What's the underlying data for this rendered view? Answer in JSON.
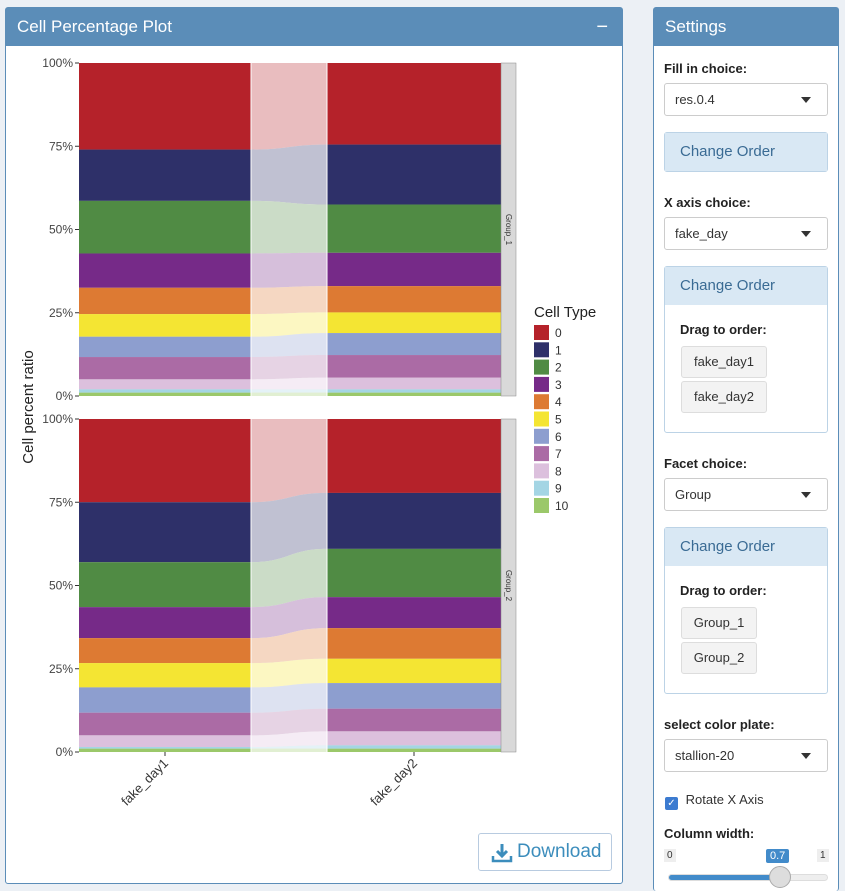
{
  "plot_panel": {
    "title": "Cell Percentage Plot",
    "collapse_icon": "minus",
    "download_label": "Download",
    "download_icon": "download-icon"
  },
  "chart_data": {
    "type": "stacked-bar-alluvial",
    "ylabel": "Cell percent ratio",
    "xlabel": "",
    "yticks": [
      "0%",
      "25%",
      "50%",
      "75%",
      "100%"
    ],
    "ylim": [
      0,
      100
    ],
    "categories": [
      "fake_day1",
      "fake_day2"
    ],
    "legend": {
      "title": "Cell Type",
      "position": "right"
    },
    "clusters": [
      "0",
      "1",
      "2",
      "3",
      "4",
      "5",
      "6",
      "7",
      "8",
      "9",
      "10"
    ],
    "colors": [
      "#b5222a",
      "#2e3069",
      "#508b44",
      "#762a88",
      "#dd7a33",
      "#f4e533",
      "#8d9ecf",
      "#ab6ba5",
      "#dcc0dd",
      "#a4d5e4",
      "#9bc86a"
    ],
    "facets": [
      {
        "name": "Group_1",
        "values": {
          "fake_day1": [
            26.0,
            15.4,
            15.8,
            10.3,
            7.9,
            6.8,
            6.1,
            6.7,
            3.0,
            1.0,
            1.0
          ],
          "fake_day2": [
            24.5,
            18.0,
            14.5,
            10.0,
            7.9,
            6.2,
            6.6,
            6.8,
            3.5,
            1.0,
            1.0
          ]
        }
      },
      {
        "name": "Group_2",
        "values": {
          "fake_day1": [
            25.0,
            18.0,
            13.5,
            9.3,
            7.5,
            7.3,
            7.6,
            6.8,
            3.5,
            0.5,
            1.0
          ],
          "fake_day2": [
            22.2,
            16.8,
            14.5,
            9.3,
            9.2,
            7.3,
            7.7,
            6.8,
            4.2,
            1.0,
            1.0
          ]
        }
      }
    ]
  },
  "settings": {
    "title": "Settings",
    "fill_label": "Fill in choice:",
    "fill_value": "res.0.4",
    "change_order": "Change Order",
    "x_label": "X axis choice:",
    "x_value": "fake_day",
    "drag_label": "Drag to order:",
    "x_order": [
      "fake_day1",
      "fake_day2"
    ],
    "facet_label": "Facet choice:",
    "facet_value": "Group",
    "facet_order": [
      "Group_1",
      "Group_2"
    ],
    "color_label": "select color plate:",
    "color_value": "stallion-20",
    "rotate_label": "Rotate X Axis",
    "rotate_checked": true,
    "width_label": "Column width:",
    "width_min": "0",
    "width_max": "1",
    "width_value": 0.7,
    "width_value_text": "0.7"
  }
}
